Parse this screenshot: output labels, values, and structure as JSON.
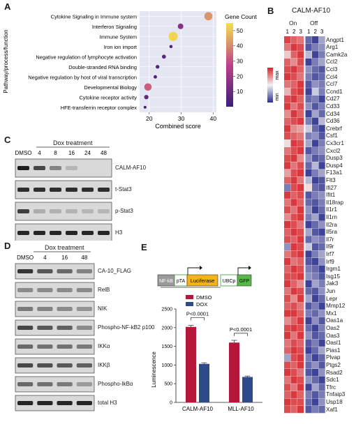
{
  "panels": {
    "a": "A",
    "b": "B",
    "c": "C",
    "d": "D",
    "e": "E"
  },
  "panel_a": {
    "chart_data": {
      "type": "scatter",
      "xlabel": "Combined score",
      "ylabel": "Pathway/process/function",
      "xlim": [
        17,
        41
      ],
      "x_ticks": [
        20,
        30,
        40
      ],
      "legend_title": "Gene Count",
      "legend_ticks": [
        10,
        20,
        30,
        40,
        50
      ],
      "color_range": [
        0,
        55
      ],
      "colors": {
        "low": "#3b1f7a",
        "mid": "#c0408a",
        "high": "#f4e24a"
      },
      "points": [
        {
          "label": "Cytokine Signaling in Immune system",
          "x": 38.5,
          "count": 42
        },
        {
          "label": "Interferon Signaling",
          "x": 29.8,
          "count": 16
        },
        {
          "label": "Immune System",
          "x": 27.5,
          "count": 53
        },
        {
          "label": "Iron ion import",
          "x": 26.8,
          "count": 3
        },
        {
          "label": "Negative regulation of lymphocyte activation",
          "x": 24.6,
          "count": 6
        },
        {
          "label": "Double-stranded RNA binding",
          "x": 22.6,
          "count": 5
        },
        {
          "label": "Negative regulation by host of viral transcription",
          "x": 21.9,
          "count": 4
        },
        {
          "label": "Developmental Biology",
          "x": 19.6,
          "count": 33
        },
        {
          "label": "Cytokine receptor activity",
          "x": 19.1,
          "count": 8
        },
        {
          "label": "HFE-transferrin receptor complex",
          "x": 18.7,
          "count": 2
        }
      ]
    }
  },
  "panel_b": {
    "title": "CALM-AF10",
    "groups": [
      "On",
      "Off"
    ],
    "replicates": [
      "1",
      "2",
      "3",
      "1",
      "2",
      "3"
    ],
    "scale_max": "max",
    "scale_min": "min",
    "genes": [
      "Angpt1",
      "Arg1",
      "Camk2a",
      "Ccl2",
      "Ccl3",
      "Ccl4",
      "Ccl7",
      "Ccnd1",
      "Cd27",
      "Cd33",
      "Cd34",
      "Cd36",
      "Crebrf",
      "Csf1",
      "Cx3cr1",
      "Cxcl2",
      "Dusp3",
      "Dusp4",
      "F13a1",
      "Flt3",
      "Ifi27",
      "Ifit1",
      "Il18rap",
      "Il1r1",
      "Il1rn",
      "Il2ra",
      "Il5ra",
      "Il7r",
      "Il9r",
      "Irf7",
      "Irf9",
      "Irgm1",
      "Isg15",
      "Jak3",
      "Jun",
      "Lepr",
      "Mmp12",
      "Mx1",
      "Oas1a",
      "Oas2",
      "Oas3",
      "Oasl1",
      "Pias1",
      "Plvap",
      "Ptgs2",
      "Rsad2",
      "Sdc1",
      "Tfrc",
      "Tnfaip3",
      "Usp18",
      "Xaf1"
    ],
    "values": [
      [
        0.85,
        0.7,
        0.6,
        -0.7,
        -0.9,
        -0.4
      ],
      [
        0.6,
        0.9,
        0.8,
        -0.8,
        -0.6,
        -0.5
      ],
      [
        0.2,
        0.7,
        0.9,
        -0.3,
        -0.9,
        -0.6
      ],
      [
        0.7,
        0.5,
        0.8,
        -0.9,
        -0.6,
        -0.4
      ],
      [
        0.8,
        0.9,
        0.7,
        -0.5,
        -0.7,
        -0.8
      ],
      [
        0.9,
        0.8,
        0.6,
        -0.6,
        -0.8,
        -0.7
      ],
      [
        0.6,
        0.7,
        0.9,
        -0.8,
        -0.5,
        -0.6
      ],
      [
        0.3,
        0.8,
        0.9,
        -0.9,
        -0.2,
        -0.6
      ],
      [
        0.8,
        0.9,
        0.7,
        -0.7,
        -0.6,
        -0.9
      ],
      [
        0.9,
        0.6,
        0.8,
        -0.5,
        -0.8,
        -0.6
      ],
      [
        0.5,
        0.9,
        0.7,
        -0.9,
        -0.4,
        -0.7
      ],
      [
        0.7,
        0.8,
        0.9,
        -0.6,
        -0.9,
        -0.3
      ],
      [
        0.9,
        0.5,
        0.4,
        -0.2,
        -0.7,
        -0.9
      ],
      [
        0.8,
        0.7,
        0.6,
        -0.6,
        -0.5,
        -0.8
      ],
      [
        0.1,
        0.9,
        0.8,
        -0.4,
        -0.9,
        -0.6
      ],
      [
        0.6,
        0.8,
        0.9,
        -0.8,
        -0.6,
        -0.5
      ],
      [
        0.8,
        0.9,
        0.5,
        -0.5,
        -0.8,
        -0.7
      ],
      [
        0.9,
        0.6,
        0.8,
        -0.7,
        -0.3,
        -0.9
      ],
      [
        0.4,
        0.8,
        0.9,
        -0.9,
        -0.6,
        -0.4
      ],
      [
        0.7,
        0.9,
        0.6,
        -0.3,
        -0.9,
        -0.8
      ],
      [
        -0.6,
        0.8,
        0.9,
        0.1,
        -0.7,
        -0.8
      ],
      [
        0.9,
        0.7,
        0.8,
        -0.8,
        -0.6,
        -0.5
      ],
      [
        0.6,
        0.9,
        0.7,
        -0.7,
        -0.8,
        -0.6
      ],
      [
        0.8,
        0.6,
        0.9,
        -0.5,
        -0.9,
        -0.7
      ],
      [
        0.5,
        0.8,
        0.9,
        -0.6,
        -0.4,
        -0.9
      ],
      [
        0.9,
        0.8,
        0.6,
        -0.9,
        -0.7,
        -0.5
      ],
      [
        0.7,
        0.9,
        0.8,
        -0.4,
        -0.8,
        -0.9
      ],
      [
        0.8,
        0.7,
        0.9,
        -0.7,
        -0.5,
        -0.6
      ],
      [
        -0.5,
        0.9,
        0.8,
        -0.2,
        -0.8,
        -0.7
      ],
      [
        0.6,
        0.8,
        0.9,
        -0.9,
        -0.6,
        -0.4
      ],
      [
        0.9,
        0.6,
        0.7,
        -0.8,
        -0.9,
        -0.5
      ],
      [
        0.7,
        0.9,
        0.8,
        -0.6,
        -0.7,
        -0.9
      ],
      [
        0.8,
        0.8,
        0.9,
        -0.5,
        -0.6,
        -0.8
      ],
      [
        0.9,
        0.7,
        0.5,
        -0.9,
        -0.4,
        -0.6
      ],
      [
        0.6,
        0.9,
        0.8,
        -0.7,
        -0.8,
        -0.5
      ],
      [
        0.8,
        0.5,
        0.9,
        -0.4,
        -0.9,
        -0.7
      ],
      [
        0.7,
        0.8,
        0.6,
        -0.8,
        -0.6,
        -0.9
      ],
      [
        0.9,
        0.9,
        0.7,
        -0.6,
        -0.7,
        -0.5
      ],
      [
        0.5,
        0.7,
        0.9,
        -0.9,
        -0.5,
        -0.8
      ],
      [
        0.8,
        0.9,
        0.8,
        -0.7,
        -0.9,
        -0.6
      ],
      [
        0.9,
        0.6,
        0.9,
        -0.5,
        -0.8,
        -0.7
      ],
      [
        0.6,
        0.8,
        0.7,
        -0.8,
        -0.6,
        -0.9
      ],
      [
        0.7,
        0.9,
        0.8,
        -0.9,
        -0.7,
        -0.4
      ],
      [
        -0.4,
        0.8,
        0.9,
        -0.6,
        -0.9,
        -0.7
      ],
      [
        0.8,
        0.7,
        0.9,
        -0.7,
        -0.5,
        -0.8
      ],
      [
        0.9,
        0.8,
        0.6,
        -0.8,
        -0.9,
        -0.5
      ],
      [
        0.6,
        0.9,
        0.8,
        -0.5,
        -0.7,
        -0.9
      ],
      [
        0.8,
        0.6,
        0.9,
        -0.9,
        -0.4,
        -0.7
      ],
      [
        0.7,
        0.9,
        0.7,
        -0.6,
        -0.8,
        -0.6
      ],
      [
        0.9,
        0.8,
        0.8,
        -0.7,
        -0.9,
        -0.5
      ],
      [
        0.8,
        0.7,
        0.9,
        -0.8,
        -0.6,
        -0.7
      ]
    ]
  },
  "panel_c": {
    "header": "Dox treatment",
    "lanes": [
      "DMSO",
      "4",
      "8",
      "16",
      "24",
      "48"
    ],
    "blots": [
      {
        "label": "CALM-AF10",
        "intensity": [
          0.95,
          0.7,
          0.35,
          0.05,
          0,
          0
        ]
      },
      {
        "label": "t-Stat3",
        "intensity": [
          0.85,
          0.85,
          0.85,
          0.85,
          0.85,
          0.85
        ]
      },
      {
        "label": "p-Stat3",
        "intensity": [
          0.75,
          0.1,
          0.08,
          0.06,
          0.05,
          0.05
        ]
      },
      {
        "label": "H3",
        "intensity": [
          0.9,
          0.9,
          0.9,
          0.9,
          0.9,
          0.9
        ]
      }
    ]
  },
  "panel_d": {
    "header": "Dox treatment",
    "lanes": [
      "DMSO",
      "4",
      "16",
      "48"
    ],
    "blots": [
      {
        "label": "CA-10_FLAG",
        "intensity": [
          0.8,
          0.6,
          0.5,
          0.35
        ]
      },
      {
        "label": "RelB",
        "intensity": [
          0.3,
          0.3,
          0.3,
          0.3
        ]
      },
      {
        "label": "NIK",
        "intensity": [
          0.4,
          0.35,
          0.3,
          0.25
        ]
      },
      {
        "label": "Phospho-NF-kB2 p100",
        "intensity": [
          0.7,
          0.6,
          0.55,
          0.3
        ]
      },
      {
        "label": "IKKα",
        "intensity": [
          0.5,
          0.45,
          0.45,
          0.4
        ]
      },
      {
        "label": "IKKβ",
        "intensity": [
          0.7,
          0.65,
          0.6,
          0.55
        ]
      },
      {
        "label": "Phospho-IkBα",
        "intensity": [
          0.5,
          0.45,
          0.4,
          0.2
        ]
      },
      {
        "label": "total H3",
        "intensity": [
          0.9,
          0.9,
          0.9,
          0.9
        ]
      }
    ]
  },
  "panel_e": {
    "construct": {
      "nfkb": "NF-kB",
      "pta": "pTA",
      "luciferase": "Luciferase",
      "ubcp": "UBCp",
      "gfp": "GFP"
    },
    "chart_data": {
      "type": "bar",
      "categories": [
        "CALM-AF10",
        "MLL-AF10"
      ],
      "ylabel": "Luminescence",
      "ylim": [
        0,
        2500
      ],
      "y_ticks": [
        0,
        500,
        1000,
        1500,
        2000,
        2500
      ],
      "series": [
        {
          "name": "DMSO",
          "values": [
            2020,
            1600
          ],
          "errors": [
            40,
            60
          ],
          "color": "#b5173a"
        },
        {
          "name": "DOX",
          "values": [
            1030,
            680
          ],
          "errors": [
            30,
            25
          ],
          "color": "#2d4a8a"
        }
      ],
      "annotations": [
        "P<0.0001",
        "P<0.0001"
      ]
    }
  }
}
